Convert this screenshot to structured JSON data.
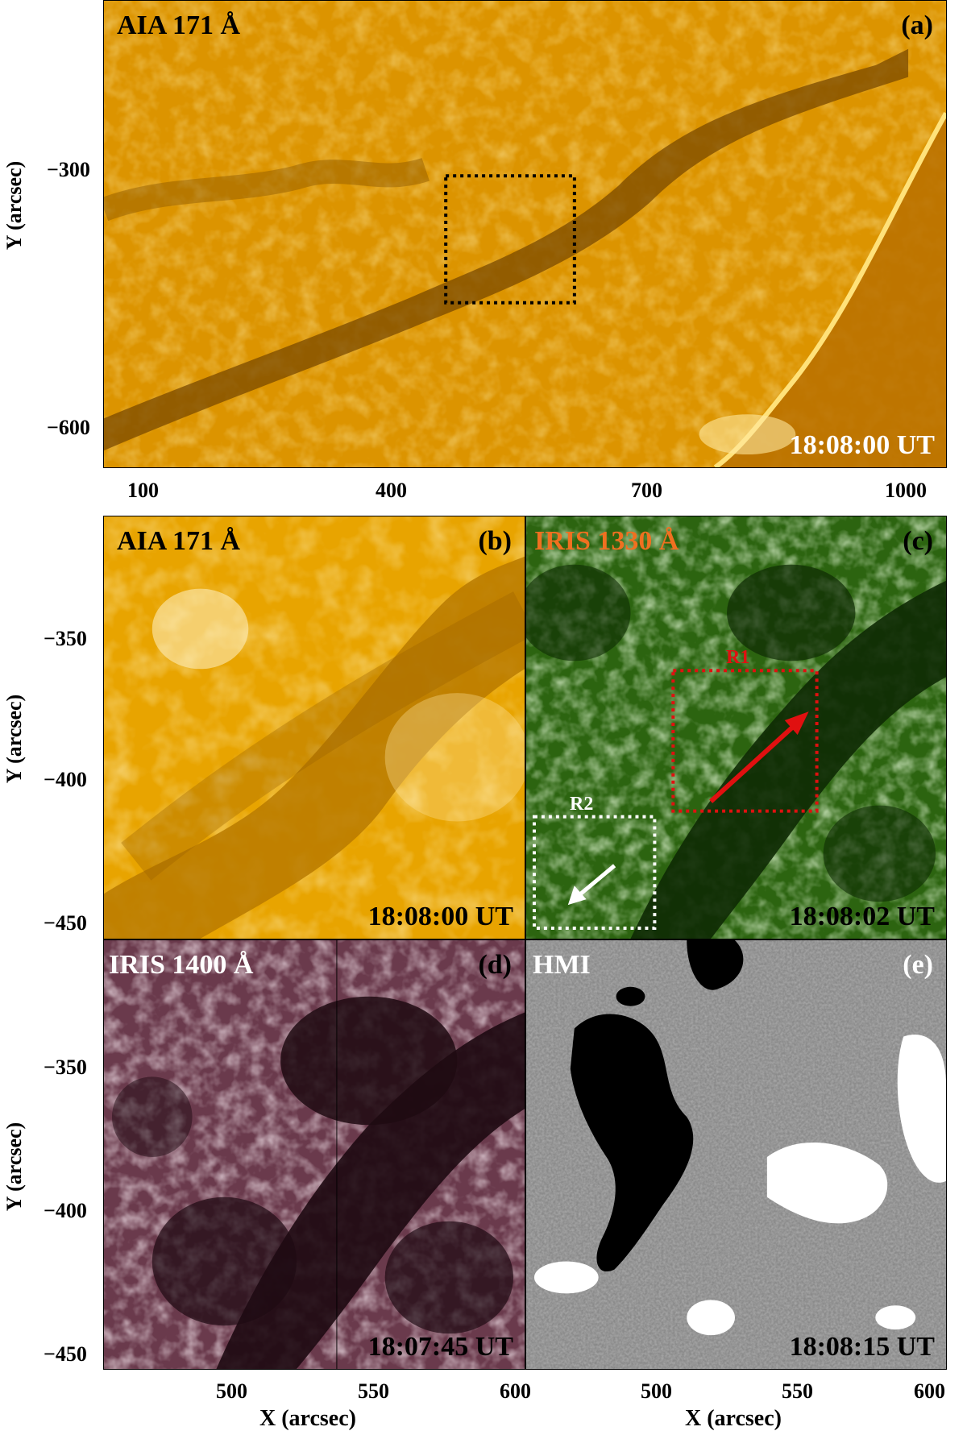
{
  "panels": {
    "a": {
      "instrument": "AIA 171 Å",
      "letter": "(a)",
      "time": "18:08:00 UT"
    },
    "b": {
      "instrument": "AIA 171 Å",
      "letter": "(b)",
      "time": "18:08:00 UT"
    },
    "c": {
      "instrument": "IRIS 1330 Å",
      "letter": "(c)",
      "time": "18:08:02 UT",
      "regions": [
        {
          "name": "R1",
          "color": "#e01010"
        },
        {
          "name": "R2",
          "color": "#ffffff"
        }
      ]
    },
    "d": {
      "instrument": "IRIS 1400 Å",
      "letter": "(d)",
      "time": "18:07:45 UT"
    },
    "e": {
      "instrument": "HMI",
      "letter": "(e)",
      "time": "18:08:15 UT"
    }
  },
  "axes": {
    "top_y_label": "Y (arcsec)",
    "top_y_ticks": [
      "−300",
      "−600"
    ],
    "top_x_ticks": [
      "100",
      "400",
      "700",
      "1000"
    ],
    "mid_y_label": "Y (arcsec)",
    "mid_y_ticks": [
      "−350",
      "−400",
      "−450"
    ],
    "bot_y_label": "Y (arcsec)",
    "bot_y_ticks": [
      "−350",
      "−400",
      "−450"
    ],
    "bot_x_ticks_left": [
      "500",
      "550",
      "600"
    ],
    "bot_x_ticks_right": [
      "500",
      "550",
      "600"
    ],
    "x_label_left": "X (arcsec)",
    "x_label_right": "X (arcsec)"
  },
  "colors": {
    "aia": "#e8a000",
    "iris1330": "#2e6a12",
    "iris1400": "#5a2a3c",
    "hmi": "#8c8c8c"
  }
}
